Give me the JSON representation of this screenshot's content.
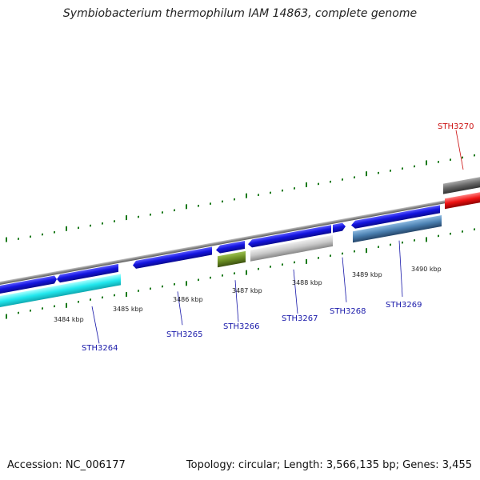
{
  "title": "Symbiobacterium thermophilum IAM 14863, complete genome",
  "footer": {
    "accession": "Accession: NC_006177",
    "summary": "Topology: circular; Length: 3,566,135 bp; Genes: 3,455"
  },
  "scale_labels": [
    "3484 kbp",
    "3485 kbp",
    "3486 kbp",
    "3487 kbp",
    "3488 kbp",
    "3489 kbp",
    "3490 kbp"
  ],
  "gene_labels": [
    {
      "text": "STH3264",
      "color": "#1a1aaa"
    },
    {
      "text": "STH3265",
      "color": "#1a1aaa"
    },
    {
      "text": "STH3266",
      "color": "#1a1aaa"
    },
    {
      "text": "STH3267",
      "color": "#1a1aaa"
    },
    {
      "text": "STH3268",
      "color": "#1a1aaa"
    },
    {
      "text": "STH3269",
      "color": "#1a1aaa"
    },
    {
      "text": "STH3270",
      "color": "#cc1111"
    }
  ],
  "colors": {
    "cds": "#1414e0",
    "feature_cyan": "#22e8ee",
    "feature_olive": "#6b8e23",
    "feature_grey": "#c8c8c8",
    "feature_steel": "#4a7fb0",
    "feature_dark": "#666666",
    "feature_red": "#ee1111",
    "backbone": "#8a8a8a",
    "ticks": "#1a7a1a"
  }
}
